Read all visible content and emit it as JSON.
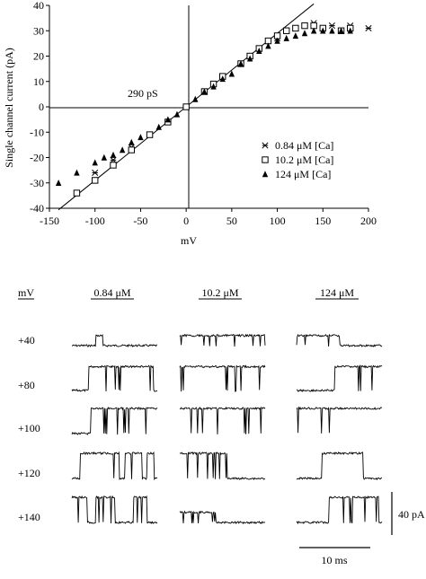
{
  "chart_data": [
    {
      "type": "scatter",
      "title": "",
      "xlabel": "mV",
      "ylabel": "Single channel current (pA)",
      "xlim": [
        -150,
        200
      ],
      "ylim": [
        -40,
        40
      ],
      "x_ticks": [
        -150,
        -100,
        -50,
        0,
        50,
        100,
        150,
        200
      ],
      "y_ticks": [
        -40,
        -30,
        -20,
        -10,
        0,
        10,
        20,
        30,
        40
      ],
      "x_tick_labels": [
        "-150",
        "-100",
        "-50",
        "0",
        "50",
        "100",
        "150",
        "200"
      ],
      "y_tick_labels": [
        "-40",
        "-30",
        "-20",
        "-10",
        "0",
        "10",
        "20",
        "30",
        "40"
      ],
      "annotation": "290 pS",
      "fit_line": {
        "slope_pA_per_mV": 0.29,
        "x": [
          -140,
          140
        ]
      },
      "legend_position": "right",
      "series": [
        {
          "name": "0.84 μM [Ca]",
          "marker": "asterisk",
          "x": [
            -100,
            -80,
            -60,
            -40,
            -20,
            0,
            20,
            40,
            60,
            80,
            100,
            120,
            140,
            160,
            180,
            200
          ],
          "y": [
            -26,
            -21,
            -16,
            -11,
            -6,
            0,
            6,
            12,
            17,
            23,
            27,
            31,
            33,
            32,
            32,
            31
          ]
        },
        {
          "name": "10.2 μM [Ca]",
          "marker": "open-square",
          "x": [
            -120,
            -100,
            -80,
            -60,
            -40,
            -20,
            0,
            20,
            30,
            40,
            60,
            70,
            80,
            90,
            100,
            110,
            120,
            130,
            140,
            150,
            170,
            180
          ],
          "y": [
            -34,
            -29,
            -23,
            -17,
            -11,
            -6,
            0,
            6,
            9,
            12,
            17,
            20,
            23,
            26,
            28,
            30,
            31,
            32,
            32,
            31,
            30,
            31
          ]
        },
        {
          "name": "124 μM [Ca]",
          "marker": "filled-triangle",
          "x": [
            -140,
            -120,
            -100,
            -90,
            -80,
            -70,
            -60,
            -50,
            -30,
            -20,
            -10,
            10,
            20,
            30,
            40,
            50,
            60,
            70,
            80,
            90,
            100,
            110,
            120,
            130,
            140,
            150,
            160,
            170,
            180
          ],
          "y": [
            -30,
            -26,
            -22,
            -20,
            -19,
            -17,
            -14,
            -12,
            -8,
            -5,
            -3,
            3,
            6,
            8,
            11,
            13,
            17,
            19,
            22,
            24,
            26,
            27,
            28,
            29,
            30,
            30,
            30,
            30,
            30
          ]
        }
      ]
    },
    {
      "type": "line",
      "title": "",
      "row_header": "mV",
      "columns": [
        "0.84 μM",
        "10.2 μM",
        "124 μM"
      ],
      "voltages": [
        "+40",
        "+80",
        "+100",
        "+120",
        "+140"
      ],
      "scale_bars": {
        "current": "40 pA",
        "time": "10 ms"
      },
      "traces": [
        [
          {
            "open_frac": 0.02,
            "events": [
              [
                0.28,
                0.36,
                0.4
              ]
            ]
          },
          {
            "open_frac": 0.75,
            "events": [
              [
                0.2,
                0.95,
                0.95
              ]
            ]
          },
          {
            "open_frac": 0.8,
            "events": [
              [
                0.22,
                1.0,
                1.0
              ]
            ]
          },
          {
            "open_frac": 0.7,
            "events": [
              [
                0.1,
                0.55,
                1.0
              ],
              [
                0.62,
                0.82,
                1.0
              ],
              [
                0.88,
                0.96,
                1.0
              ]
            ]
          },
          {
            "open_frac": 0.55,
            "events": [
              [
                0.0,
                0.18,
                1.0
              ],
              [
                0.28,
                0.5,
                1.0
              ],
              [
                0.72,
                0.88,
                1.0
              ]
            ]
          }
        ],
        [
          {
            "open_frac": 0.95,
            "events": [
              [
                0.0,
                1.0,
                0.4
              ]
            ]
          },
          {
            "open_frac": 0.85,
            "events": [
              [
                0.0,
                1.0,
                0.95
              ]
            ]
          },
          {
            "open_frac": 0.95,
            "events": [
              [
                0.0,
                1.0,
                1.0
              ]
            ]
          },
          {
            "open_frac": 0.5,
            "events": [
              [
                0.0,
                0.55,
                1.0
              ]
            ]
          },
          {
            "open_frac": 0.4,
            "events": [
              [
                0.0,
                0.42,
                0.4
              ]
            ]
          }
        ],
        [
          {
            "open_frac": 0.5,
            "events": [
              [
                0.0,
                0.5,
                0.4
              ]
            ]
          },
          {
            "open_frac": 0.45,
            "events": [
              [
                0.45,
                1.0,
                0.95
              ]
            ]
          },
          {
            "open_frac": 0.9,
            "events": [
              [
                0.0,
                1.0,
                1.0
              ]
            ]
          },
          {
            "open_frac": 0.6,
            "events": [
              [
                0.3,
                0.78,
                1.0
              ]
            ]
          },
          {
            "open_frac": 0.55,
            "events": [
              [
                0.38,
                0.96,
                1.0
              ]
            ]
          }
        ]
      ]
    }
  ]
}
